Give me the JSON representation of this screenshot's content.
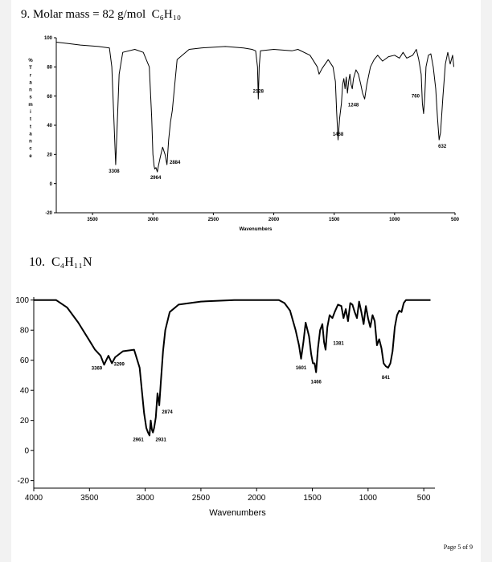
{
  "page": {
    "footer": "Page 5 of 9"
  },
  "questions": [
    {
      "number": "9.",
      "label": "Molar mass = 82 g/mol",
      "formula": "C₆H₁₀"
    },
    {
      "number": "10.",
      "label": "",
      "formula": "C₄H₁₁N"
    }
  ],
  "chart_data": [
    {
      "type": "line",
      "title": "",
      "xlabel": "Wavenumbers",
      "ylabel": "% Transmittance",
      "xlim": [
        3800,
        500
      ],
      "ylim": [
        -20,
        100
      ],
      "x_reversed": true,
      "xticks": [
        3500,
        3000,
        2500,
        2000,
        1500,
        1000,
        500
      ],
      "yticks": [
        100,
        80,
        60,
        40,
        20,
        0,
        -20
      ],
      "x": [
        3800,
        3700,
        3600,
        3450,
        3360,
        3340,
        3308,
        3280,
        3250,
        3150,
        3080,
        3030,
        3010,
        3000,
        2990,
        2985,
        2975,
        2964,
        2955,
        2940,
        2920,
        2900,
        2884,
        2870,
        2855,
        2840,
        2800,
        2700,
        2600,
        2400,
        2250,
        2180,
        2150,
        2135,
        2128,
        2121,
        2110,
        2000,
        1850,
        1800,
        1700,
        1640,
        1625,
        1600,
        1550,
        1510,
        1490,
        1480,
        1468,
        1455,
        1440,
        1430,
        1420,
        1410,
        1400,
        1390,
        1380,
        1370,
        1360,
        1350,
        1340,
        1320,
        1300,
        1280,
        1265,
        1248,
        1230,
        1200,
        1170,
        1140,
        1100,
        1050,
        1000,
        960,
        930,
        900,
        850,
        820,
        800,
        780,
        770,
        760,
        750,
        740,
        720,
        700,
        680,
        660,
        645,
        632,
        620,
        600,
        580,
        560,
        540,
        520,
        510
      ],
      "y": [
        97,
        96,
        95,
        94,
        93,
        80,
        13,
        75,
        90,
        92,
        90,
        80,
        45,
        20,
        12,
        10,
        11,
        8,
        12,
        18,
        25,
        20,
        13,
        30,
        42,
        50,
        85,
        92,
        93,
        94,
        93,
        92,
        91,
        80,
        58,
        80,
        91,
        92,
        91,
        92,
        88,
        80,
        75,
        79,
        85,
        80,
        70,
        50,
        30,
        45,
        55,
        68,
        72,
        65,
        73,
        62,
        70,
        75,
        68,
        65,
        72,
        78,
        75,
        68,
        62,
        58,
        68,
        80,
        85,
        88,
        84,
        87,
        88,
        86,
        90,
        86,
        88,
        92,
        85,
        75,
        55,
        48,
        60,
        80,
        88,
        89,
        80,
        65,
        45,
        30,
        35,
        60,
        82,
        90,
        82,
        88,
        80
      ],
      "annotations": [
        {
          "text": "3308",
          "x": 3308,
          "y": 13
        },
        {
          "text": "2964",
          "x": 2964,
          "y": 8
        },
        {
          "text": "2884",
          "x": 2884,
          "y": 13
        },
        {
          "text": "2128",
          "x": 2128,
          "y": 58
        },
        {
          "text": "1468",
          "x": 1468,
          "y": 30
        },
        {
          "text": "1248",
          "x": 1248,
          "y": 58
        },
        {
          "text": "760",
          "x": 760,
          "y": 48
        },
        {
          "text": "632",
          "x": 632,
          "y": 30
        }
      ],
      "ylabel_vertical": "%Transmittance"
    },
    {
      "type": "line",
      "title": "",
      "xlabel": "Wavenumbers",
      "ylabel": "",
      "xlim": [
        4000,
        400
      ],
      "ylim": [
        -25,
        102
      ],
      "x_reversed": true,
      "xticks": [
        4000,
        3500,
        3000,
        2500,
        2000,
        1500,
        1000,
        500
      ],
      "yticks": [
        100,
        80,
        60,
        40,
        20,
        0,
        -20
      ],
      "x": [
        4000,
        3900,
        3800,
        3700,
        3600,
        3500,
        3450,
        3400,
        3369,
        3350,
        3330,
        3299,
        3270,
        3200,
        3100,
        3050,
        3010,
        2990,
        2975,
        2961,
        2950,
        2940,
        2931,
        2920,
        2905,
        2890,
        2874,
        2860,
        2840,
        2820,
        2780,
        2700,
        2500,
        2200,
        2000,
        1900,
        1800,
        1750,
        1700,
        1650,
        1620,
        1601,
        1580,
        1560,
        1530,
        1510,
        1495,
        1480,
        1466,
        1450,
        1430,
        1410,
        1395,
        1381,
        1365,
        1345,
        1320,
        1300,
        1270,
        1240,
        1220,
        1200,
        1180,
        1160,
        1140,
        1120,
        1100,
        1080,
        1060,
        1040,
        1020,
        1000,
        980,
        960,
        940,
        920,
        900,
        880,
        860,
        841,
        820,
        800,
        780,
        760,
        740,
        720,
        700,
        680,
        660,
        640,
        620,
        600,
        560,
        520,
        480,
        440
      ],
      "y": [
        100,
        100,
        100,
        95,
        85,
        73,
        67,
        63,
        57,
        60,
        63,
        58,
        62,
        66,
        67,
        55,
        25,
        15,
        12,
        10,
        20,
        14,
        12,
        15,
        22,
        38,
        30,
        45,
        66,
        80,
        92,
        97,
        99,
        100,
        100,
        100,
        100,
        98,
        93,
        80,
        70,
        61,
        72,
        85,
        76,
        64,
        58,
        58,
        52,
        68,
        80,
        84,
        72,
        67,
        82,
        90,
        88,
        92,
        97,
        96,
        88,
        94,
        86,
        98,
        97,
        92,
        88,
        99,
        92,
        84,
        96,
        88,
        82,
        90,
        86,
        70,
        74,
        68,
        58,
        56,
        55,
        58,
        66,
        82,
        90,
        93,
        92,
        98,
        100,
        100,
        100,
        100,
        100,
        100,
        100,
        100
      ],
      "annotations": [
        {
          "text": "3369",
          "x": 3369,
          "y": 57
        },
        {
          "text": "3299",
          "x": 3299,
          "y": 58
        },
        {
          "text": "2961",
          "x": 2961,
          "y": 10
        },
        {
          "text": "2931",
          "x": 2931,
          "y": 12
        },
        {
          "text": "2874",
          "x": 2874,
          "y": 30
        },
        {
          "text": "1601",
          "x": 1601,
          "y": 61
        },
        {
          "text": "1466",
          "x": 1466,
          "y": 52
        },
        {
          "text": "1381",
          "x": 1381,
          "y": 67
        },
        {
          "text": "841",
          "x": 841,
          "y": 55
        }
      ]
    }
  ]
}
